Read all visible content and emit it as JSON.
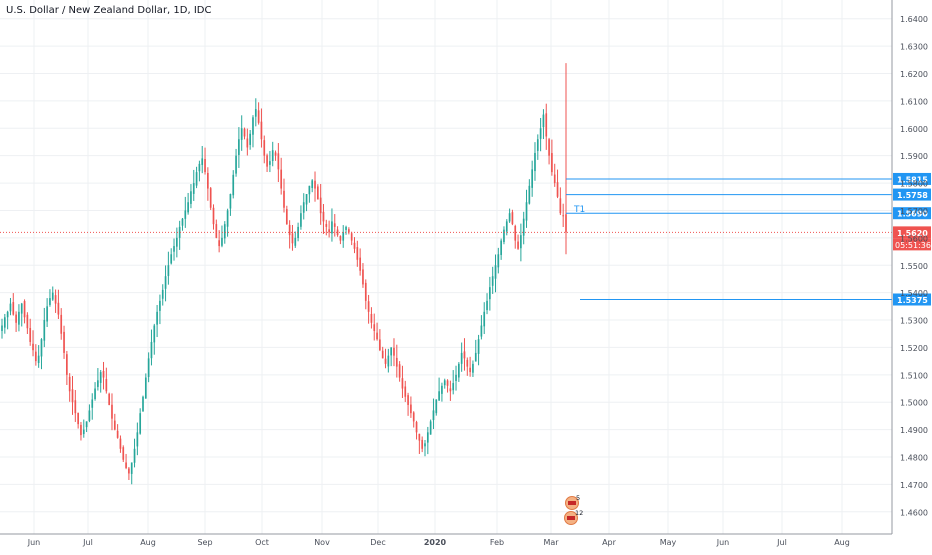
{
  "title": "U.S. Dollar / New Zealand Dollar, 1D, IDC",
  "colors": {
    "up": "#26a69a",
    "down": "#ef5350",
    "level": "#2196f3",
    "grid": "#eef0f3",
    "axis_text": "#4a4f5a",
    "last_price": "#ef5350"
  },
  "chart_data": {
    "type": "candlestick",
    "title": "U.S. Dollar / New Zealand Dollar, 1D, IDC",
    "ylim": [
      1.455,
      1.645
    ],
    "y_ticks": [
      "1.6400",
      "1.6300",
      "1.6200",
      "1.6100",
      "1.6000",
      "1.5900",
      "1.5800",
      "1.5700",
      "1.5600",
      "1.5500",
      "1.5400",
      "1.5300",
      "1.5200",
      "1.5100",
      "1.5000",
      "1.4900",
      "1.4800",
      "1.4700",
      "1.4600"
    ],
    "x_ticks": [
      "Jun",
      "Jul",
      "Aug",
      "Sep",
      "Oct",
      "Nov",
      "Dec",
      "2020",
      "Feb",
      "Mar",
      "Apr",
      "May",
      "Jun",
      "Jul",
      "Aug"
    ],
    "grid": true,
    "closes": [
      1.528,
      1.531,
      1.533,
      1.536,
      1.532,
      1.529,
      1.533,
      1.536,
      1.531,
      1.527,
      1.522,
      1.519,
      1.515,
      1.517,
      1.523,
      1.53,
      1.535,
      1.538,
      1.54,
      1.536,
      1.532,
      1.525,
      1.518,
      1.51,
      1.504,
      1.5,
      1.496,
      1.492,
      1.488,
      1.49,
      1.493,
      1.497,
      1.501,
      1.505,
      1.508,
      1.511,
      1.509,
      1.504,
      1.499,
      1.494,
      1.49,
      1.487,
      1.483,
      1.479,
      1.476,
      1.474,
      1.478,
      1.483,
      1.489,
      1.496,
      1.502,
      1.509,
      1.516,
      1.522,
      1.528,
      1.533,
      1.537,
      1.541,
      1.546,
      1.55,
      1.554,
      1.557,
      1.56,
      1.564,
      1.567,
      1.57,
      1.573,
      1.577,
      1.58,
      1.584,
      1.587,
      1.589,
      1.584,
      1.578,
      1.571,
      1.565,
      1.56,
      1.557,
      1.56,
      1.565,
      1.57,
      1.576,
      1.583,
      1.59,
      1.596,
      1.6,
      1.597,
      1.593,
      1.598,
      1.604,
      1.607,
      1.602,
      1.596,
      1.59,
      1.586,
      1.588,
      1.592,
      1.59,
      1.585,
      1.578,
      1.571,
      1.565,
      1.561,
      1.558,
      1.56,
      1.564,
      1.569,
      1.573,
      1.576,
      1.579,
      1.581,
      1.578,
      1.574,
      1.569,
      1.566,
      1.564,
      1.562,
      1.566,
      1.564,
      1.561,
      1.559,
      1.562,
      1.564,
      1.562,
      1.559,
      1.556,
      1.552,
      1.548,
      1.543,
      1.537,
      1.533,
      1.529,
      1.526,
      1.523,
      1.519,
      1.516,
      1.514,
      1.517,
      1.52,
      1.517,
      1.513,
      1.509,
      1.505,
      1.502,
      1.499,
      1.496,
      1.493,
      1.489,
      1.486,
      1.483,
      1.485,
      1.489,
      1.493,
      1.497,
      1.501,
      1.504,
      1.506,
      1.508,
      1.506,
      1.504,
      1.507,
      1.51,
      1.514,
      1.518,
      1.516,
      1.513,
      1.511,
      1.514,
      1.518,
      1.523,
      1.528,
      1.533,
      1.537,
      1.542,
      1.546,
      1.55,
      1.554,
      1.559,
      1.563,
      1.566,
      1.569,
      1.565,
      1.559,
      1.556,
      1.561,
      1.567,
      1.573,
      1.579,
      1.585,
      1.591,
      1.596,
      1.6,
      1.605,
      1.597,
      1.59,
      1.584,
      1.58,
      1.575,
      1.569,
      1.568,
      1.562
    ],
    "series_shown": "USDNZD daily candles, ~Jun 2019 to early Mar 2020",
    "price_levels": [
      {
        "value": 1.5815,
        "label": "1.5815"
      },
      {
        "value": 1.5758,
        "label": "1.5758"
      },
      {
        "value": 1.569,
        "label": "1.5690",
        "annotation": "T1"
      },
      {
        "value": 1.5375,
        "label": "1.5375"
      }
    ],
    "last_price": {
      "value": 1.562,
      "label": "1.5620",
      "countdown": "05:51:36"
    },
    "event_badges": [
      {
        "text": "5"
      },
      {
        "text": "12"
      }
    ]
  }
}
